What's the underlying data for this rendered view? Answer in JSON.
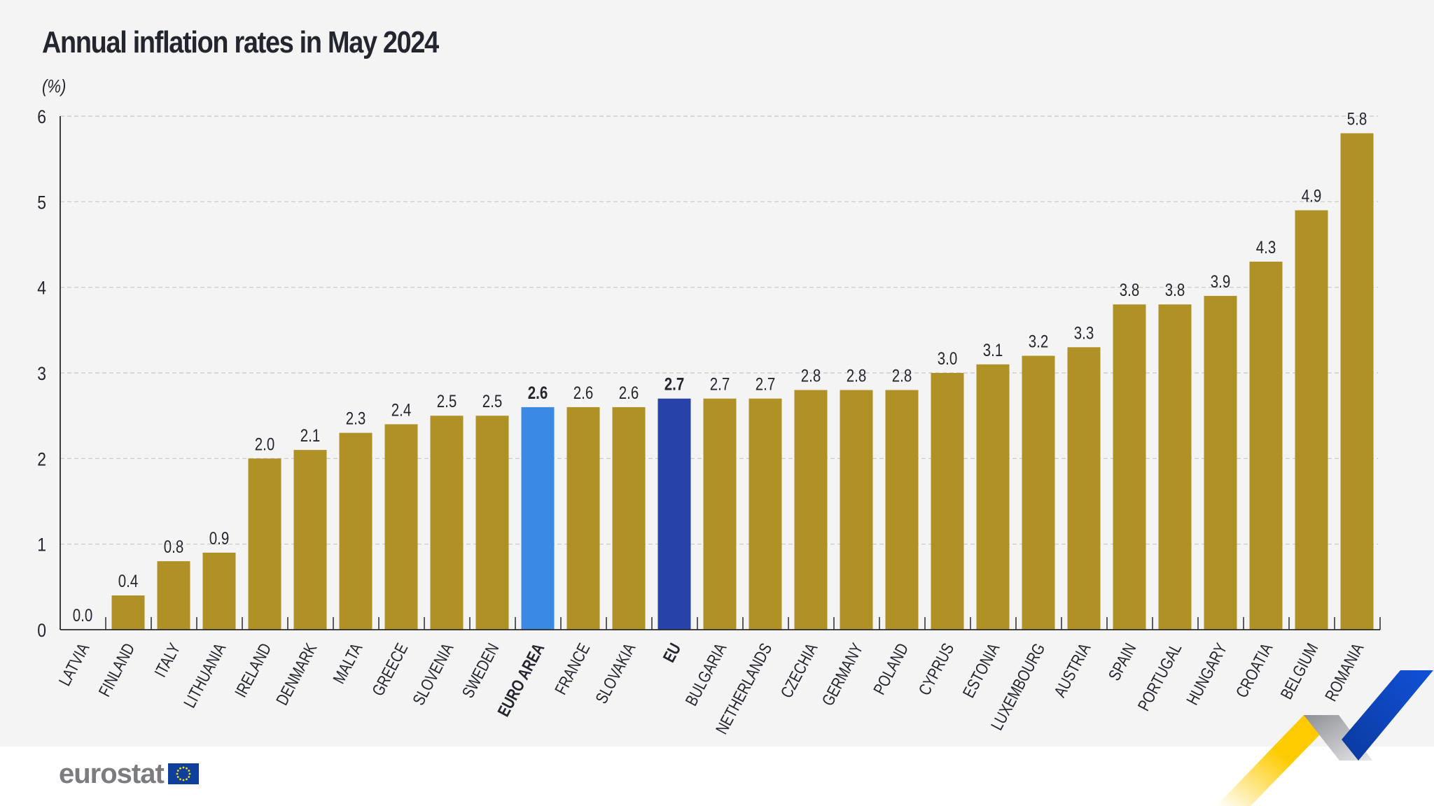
{
  "header": {
    "title": "Annual inflation rates in May 2024",
    "unit_label": "(%)"
  },
  "footer": {
    "logo_text": "eurostat",
    "logo_icon": "eu-flag-icon"
  },
  "colors": {
    "country_bar": "#b09126",
    "euro_area_bar": "#3a8ae3",
    "eu_bar": "#2742a8",
    "text": "#23262f",
    "gridline": "#c8c8c8",
    "ribbon_yellow": "#fecb00",
    "ribbon_grey": "#a7a9ad",
    "ribbon_blue": "#0e47cb"
  },
  "chart_data": {
    "type": "bar",
    "title": "Annual inflation rates in May 2024",
    "xlabel": "",
    "ylabel": "(%)",
    "ylim": [
      0,
      6
    ],
    "yticks": [
      0,
      1,
      2,
      3,
      4,
      5,
      6
    ],
    "grid": true,
    "legend": "none",
    "categories": [
      "LATVIA",
      "FINLAND",
      "ITALY",
      "LITHUANIA",
      "IRELAND",
      "DENMARK",
      "MALTA",
      "GREECE",
      "SLOVENIA",
      "SWEDEN",
      "EURO AREA",
      "FRANCE",
      "SLOVAKIA",
      "EU",
      "BULGARIA",
      "NETHERLANDS",
      "CZECHIA",
      "GERMANY",
      "POLAND",
      "CYPRUS",
      "ESTONIA",
      "LUXEMBOURG",
      "AUSTRIA",
      "SPAIN",
      "PORTUGAL",
      "HUNGARY",
      "CROATIA",
      "BELGIUM",
      "ROMANIA"
    ],
    "values": [
      0.0,
      0.4,
      0.8,
      0.9,
      2.0,
      2.1,
      2.3,
      2.4,
      2.5,
      2.5,
      2.6,
      2.6,
      2.6,
      2.7,
      2.7,
      2.7,
      2.8,
      2.8,
      2.8,
      3.0,
      3.1,
      3.2,
      3.3,
      3.8,
      3.8,
      3.9,
      4.3,
      4.9,
      5.8
    ],
    "value_labels": [
      "0.0",
      "0.4",
      "0.8",
      "0.9",
      "2.0",
      "2.1",
      "2.3",
      "2.4",
      "2.5",
      "2.5",
      "2.6",
      "2.6",
      "2.6",
      "2.7",
      "2.7",
      "2.7",
      "2.8",
      "2.8",
      "2.8",
      "3.0",
      "3.1",
      "3.2",
      "3.3",
      "3.8",
      "3.8",
      "3.9",
      "4.3",
      "4.9",
      "5.8"
    ],
    "highlighted": {
      "EURO AREA": "euro_area_bar",
      "EU": "eu_bar"
    },
    "bold_categories": [
      "EURO AREA",
      "EU"
    ]
  }
}
